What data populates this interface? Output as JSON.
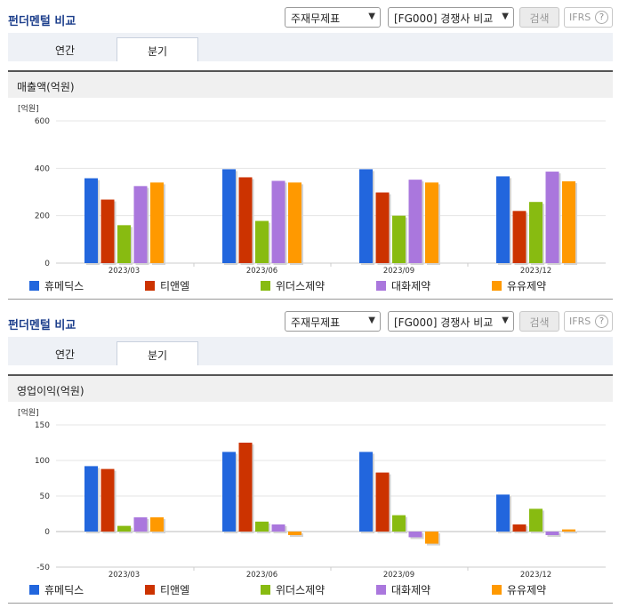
{
  "controls": {
    "title": "펀더멘털 비교",
    "select_type": "주재무제표",
    "select_group": "[FG000] 경쟁사 비교",
    "search_label": "검색",
    "ifrs_label": "IFRS",
    "help_glyph": "?",
    "tabs": [
      "연간",
      "분기"
    ],
    "active_tab": "분기",
    "dropdown_icon": "chevron-down-icon"
  },
  "colors": {
    "series": [
      "#2266dd",
      "#cc3300",
      "#88bb11",
      "#aa77dd",
      "#ff9900"
    ],
    "title": "#1d3f8c"
  },
  "sections": [
    {
      "band_label": "매출액(억원)",
      "chart_data": {
        "type": "bar",
        "unit_label": "[억원]",
        "categories": [
          "2023/03",
          "2023/06",
          "2023/09",
          "2023/12"
        ],
        "ylim": [
          0,
          600
        ],
        "yticks": [
          0,
          200,
          400,
          600
        ],
        "grid": true,
        "legend_position": "bottom",
        "series": [
          {
            "name": "휴메딕스",
            "values": [
              358,
              396,
              396,
              366
            ]
          },
          {
            "name": "티앤엘",
            "values": [
              268,
              362,
              298,
              220
            ]
          },
          {
            "name": "위더스제약",
            "values": [
              160,
              178,
              200,
              258
            ]
          },
          {
            "name": "대화제약",
            "values": [
              325,
              347,
              352,
              386
            ]
          },
          {
            "name": "유유제약",
            "values": [
              340,
              340,
              340,
              345
            ]
          }
        ]
      }
    },
    {
      "band_label": "영업이익(억원)",
      "chart_data": {
        "type": "bar",
        "unit_label": "[억원]",
        "categories": [
          "2023/03",
          "2023/06",
          "2023/09",
          "2023/12"
        ],
        "ylim": [
          -50,
          150
        ],
        "yticks": [
          -50,
          0,
          50,
          100,
          150
        ],
        "grid": true,
        "legend_position": "bottom",
        "series": [
          {
            "name": "휴메딕스",
            "values": [
              92,
              112,
              112,
              52
            ]
          },
          {
            "name": "티앤엘",
            "values": [
              88,
              125,
              83,
              10
            ]
          },
          {
            "name": "위더스제약",
            "values": [
              8,
              14,
              23,
              32
            ]
          },
          {
            "name": "대화제약",
            "values": [
              20,
              10,
              -8,
              -5
            ]
          },
          {
            "name": "유유제약",
            "values": [
              20,
              -5,
              -17,
              3
            ]
          }
        ]
      }
    }
  ]
}
